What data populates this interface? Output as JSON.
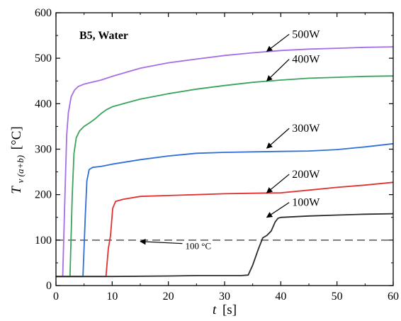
{
  "chart_data": {
    "type": "line",
    "title": "B5, Water",
    "xlabel": {
      "main": "t",
      "unit": "[s]"
    },
    "ylabel": {
      "main": "T",
      "sub": "v (a+b)",
      "unit": "[°C]"
    },
    "xlim": [
      0,
      60
    ],
    "ylim": [
      0,
      600
    ],
    "x_ticks": [
      0,
      10,
      20,
      30,
      40,
      50,
      60
    ],
    "y_ticks": [
      0,
      100,
      200,
      300,
      400,
      500,
      600
    ],
    "grid": false,
    "reference_line": {
      "y": 100,
      "label": "100 °C",
      "color": "#555555"
    },
    "series": [
      {
        "name": "500W",
        "color": "#a66ee6",
        "points": [
          [
            0,
            20
          ],
          [
            1.2,
            20
          ],
          [
            1.6,
            200
          ],
          [
            1.9,
            330
          ],
          [
            2.2,
            380
          ],
          [
            2.7,
            415
          ],
          [
            3.3,
            430
          ],
          [
            4,
            438
          ],
          [
            5,
            443
          ],
          [
            6,
            446
          ],
          [
            8,
            452
          ],
          [
            10,
            460
          ],
          [
            15,
            478
          ],
          [
            20,
            490
          ],
          [
            25,
            498
          ],
          [
            30,
            506
          ],
          [
            35,
            512
          ],
          [
            40,
            517
          ],
          [
            45,
            520
          ],
          [
            50,
            522
          ],
          [
            55,
            524
          ],
          [
            60,
            525
          ]
        ]
      },
      {
        "name": "400W",
        "color": "#3aa35e",
        "points": [
          [
            0,
            20
          ],
          [
            2.5,
            20
          ],
          [
            2.9,
            200
          ],
          [
            3.2,
            290
          ],
          [
            3.6,
            325
          ],
          [
            4.2,
            340
          ],
          [
            5,
            350
          ],
          [
            6,
            358
          ],
          [
            7,
            367
          ],
          [
            8,
            378
          ],
          [
            9,
            387
          ],
          [
            10,
            393
          ],
          [
            12,
            400
          ],
          [
            15,
            410
          ],
          [
            20,
            422
          ],
          [
            25,
            432
          ],
          [
            30,
            440
          ],
          [
            35,
            447
          ],
          [
            40,
            452
          ],
          [
            45,
            456
          ],
          [
            50,
            458
          ],
          [
            55,
            460
          ],
          [
            60,
            461
          ]
        ]
      },
      {
        "name": "300W",
        "color": "#2f6fd6",
        "points": [
          [
            0,
            20
          ],
          [
            4.8,
            20
          ],
          [
            5.2,
            150
          ],
          [
            5.5,
            230
          ],
          [
            5.9,
            255
          ],
          [
            6.5,
            260
          ],
          [
            8,
            262
          ],
          [
            10,
            267
          ],
          [
            15,
            277
          ],
          [
            20,
            285
          ],
          [
            25,
            291
          ],
          [
            30,
            293
          ],
          [
            35,
            294
          ],
          [
            40,
            295
          ],
          [
            45,
            296
          ],
          [
            50,
            299
          ],
          [
            55,
            305
          ],
          [
            60,
            312
          ]
        ]
      },
      {
        "name": "200W",
        "color": "#e0312f",
        "points": [
          [
            0,
            20
          ],
          [
            8.9,
            20
          ],
          [
            9.3,
            80
          ],
          [
            9.7,
            110
          ],
          [
            10.1,
            170
          ],
          [
            10.6,
            185
          ],
          [
            12,
            190
          ],
          [
            15,
            196
          ],
          [
            20,
            198
          ],
          [
            25,
            200
          ],
          [
            30,
            202
          ],
          [
            35,
            203
          ],
          [
            40,
            204
          ],
          [
            45,
            210
          ],
          [
            50,
            216
          ],
          [
            55,
            221
          ],
          [
            60,
            227
          ]
        ]
      },
      {
        "name": "100W",
        "color": "#2b2b2b",
        "points": [
          [
            0,
            20
          ],
          [
            10,
            20
          ],
          [
            20,
            21
          ],
          [
            25,
            22
          ],
          [
            30,
            22
          ],
          [
            33,
            22
          ],
          [
            34.2,
            23
          ],
          [
            35,
            45
          ],
          [
            36,
            80
          ],
          [
            36.8,
            105
          ],
          [
            37.5,
            110
          ],
          [
            38.3,
            120
          ],
          [
            39,
            140
          ],
          [
            39.5,
            148
          ],
          [
            40,
            150
          ],
          [
            45,
            153
          ],
          [
            50,
            155
          ],
          [
            55,
            157
          ],
          [
            60,
            158
          ]
        ]
      }
    ],
    "labels": [
      {
        "series": "500W",
        "text": "500W",
        "pos": [
          42,
          545
        ],
        "arrow_to": [
          37.5,
          515
        ]
      },
      {
        "series": "400W",
        "text": "400W",
        "pos": [
          42,
          490
        ],
        "arrow_to": [
          37.5,
          450
        ]
      },
      {
        "series": "300W",
        "text": "300W",
        "pos": [
          42,
          338
        ],
        "arrow_to": [
          37.5,
          302
        ]
      },
      {
        "series": "200W",
        "text": "200W",
        "pos": [
          42,
          237
        ],
        "arrow_to": [
          37.5,
          204
        ]
      },
      {
        "series": "100W",
        "text": "100W",
        "pos": [
          42,
          175
        ],
        "arrow_to": [
          37.5,
          150
        ]
      },
      {
        "series": "reference",
        "text": "100 °C",
        "pos": [
          23,
          80
        ],
        "arrow_to": [
          15,
          97
        ]
      }
    ]
  }
}
